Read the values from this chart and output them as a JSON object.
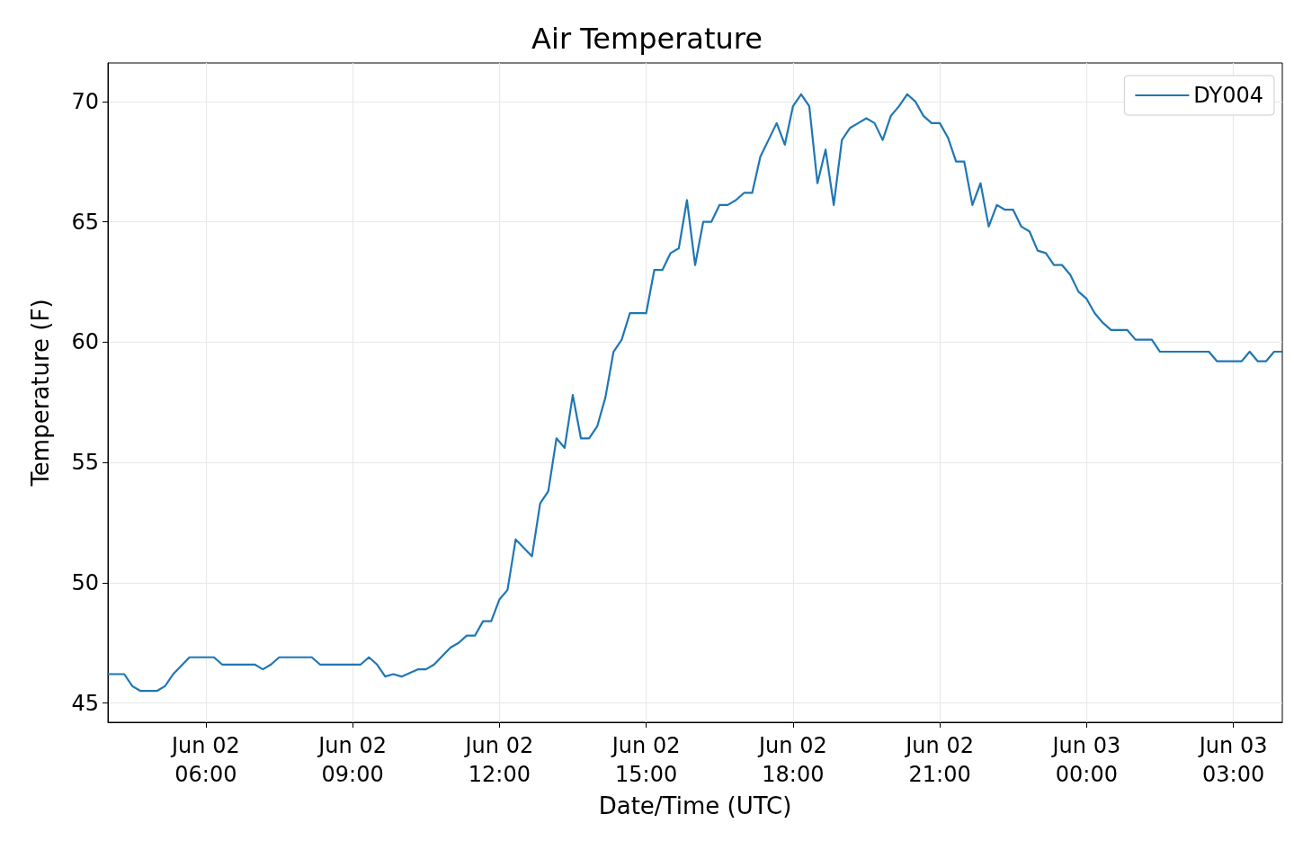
{
  "chart_data": {
    "type": "line",
    "title": "Air Temperature",
    "xlabel": "Date/Time (UTC)",
    "ylabel": "Temperature (F)",
    "x": [
      "--06-02T04:00",
      "--06-02T04:20",
      "--06-02T04:30",
      "--06-02T04:40",
      "--06-02T05:00",
      "--06-02T05:10",
      "--06-02T05:20",
      "--06-02T05:40",
      "--06-02T06:10",
      "--06-02T06:20",
      "--06-02T07:00",
      "--06-02T07:10",
      "--06-02T07:20",
      "--06-02T07:30",
      "--06-02T08:10",
      "--06-02T08:20",
      "--06-02T09:10",
      "--06-02T09:20",
      "--06-02T09:30",
      "--06-02T09:40",
      "--06-02T09:50",
      "--06-02T10:00",
      "--06-02T10:20",
      "--06-02T10:30",
      "--06-02T10:40",
      "--06-02T11:00",
      "--06-02T11:10",
      "--06-02T11:20",
      "--06-02T11:30",
      "--06-02T11:40",
      "--06-02T11:50",
      "--06-02T12:00",
      "--06-02T12:10",
      "--06-02T12:20",
      "--06-02T12:40",
      "--06-02T12:50",
      "--06-02T13:00",
      "--06-02T13:10",
      "--06-02T13:20",
      "--06-02T13:30",
      "--06-02T13:40",
      "--06-02T13:50",
      "--06-02T14:00",
      "--06-02T14:10",
      "--06-02T14:20",
      "--06-02T14:30",
      "--06-02T14:40",
      "--06-02T15:00",
      "--06-02T15:10",
      "--06-02T15:20",
      "--06-02T15:30",
      "--06-02T15:40",
      "--06-02T15:50",
      "--06-02T16:00",
      "--06-02T16:10",
      "--06-02T16:20",
      "--06-02T16:30",
      "--06-02T16:40",
      "--06-02T16:50",
      "--06-02T17:00",
      "--06-02T17:10",
      "--06-02T17:20",
      "--06-02T17:30",
      "--06-02T17:40",
      "--06-02T17:50",
      "--06-02T18:00",
      "--06-02T18:10",
      "--06-02T18:20",
      "--06-02T18:30",
      "--06-02T18:40",
      "--06-02T18:50",
      "--06-02T19:00",
      "--06-02T19:10",
      "--06-02T19:20",
      "--06-02T19:30",
      "--06-02T19:40",
      "--06-02T19:50",
      "--06-02T20:00",
      "--06-02T20:10",
      "--06-02T20:20",
      "--06-02T20:30",
      "--06-02T20:40",
      "--06-02T20:50",
      "--06-02T21:00",
      "--06-02T21:10",
      "--06-02T21:20",
      "--06-02T21:30",
      "--06-02T21:40",
      "--06-02T21:50",
      "--06-02T22:00",
      "--06-02T22:10",
      "--06-02T22:20",
      "--06-02T22:30",
      "--06-02T22:40",
      "--06-02T22:50",
      "--06-02T23:00",
      "--06-02T23:10",
      "--06-02T23:20",
      "--06-02T23:30",
      "--06-02T23:40",
      "--06-02T23:50",
      "--06-03T00:00",
      "--06-03T00:10",
      "--06-03T00:20",
      "--06-03T00:30",
      "--06-03T00:50",
      "--06-03T01:00",
      "--06-03T01:20",
      "--06-03T01:30",
      "--06-03T02:30",
      "--06-03T02:40",
      "--06-03T03:10",
      "--06-03T03:20",
      "--06-03T03:30",
      "--06-03T03:40",
      "--06-03T03:50",
      "--06-03T04:00"
    ],
    "series": [
      {
        "name": "DY004",
        "color": "#1f77b4",
        "values": [
          46.2,
          46.2,
          45.7,
          45.5,
          45.5,
          45.7,
          46.2,
          46.9,
          46.9,
          46.6,
          46.6,
          46.4,
          46.6,
          46.9,
          46.9,
          46.6,
          46.6,
          46.9,
          46.6,
          46.1,
          46.2,
          46.1,
          46.4,
          46.4,
          46.6,
          47.3,
          47.5,
          47.8,
          47.8,
          48.4,
          48.4,
          49.3,
          49.7,
          51.8,
          51.1,
          53.3,
          53.8,
          56.0,
          55.6,
          57.8,
          56.0,
          56.0,
          56.5,
          57.7,
          59.6,
          60.1,
          61.2,
          61.2,
          63.0,
          63.0,
          63.7,
          63.9,
          65.9,
          63.2,
          65.0,
          65.0,
          65.7,
          65.7,
          65.9,
          66.2,
          66.2,
          67.7,
          68.4,
          69.1,
          68.2,
          69.8,
          70.3,
          69.8,
          66.6,
          68.0,
          65.7,
          68.4,
          68.9,
          69.1,
          69.3,
          69.1,
          68.4,
          69.4,
          69.8,
          70.3,
          70.0,
          69.4,
          69.1,
          69.1,
          68.5,
          67.5,
          67.5,
          65.7,
          66.6,
          64.8,
          65.7,
          65.5,
          65.5,
          64.8,
          64.6,
          63.8,
          63.7,
          63.2,
          63.2,
          62.8,
          62.1,
          61.8,
          61.2,
          60.8,
          60.5,
          60.5,
          60.1,
          60.1,
          59.6,
          59.6,
          59.2,
          59.2,
          59.6,
          59.2,
          59.2,
          59.6,
          59.6
        ]
      }
    ],
    "xlim": [
      "--06-02T04:00",
      "--06-03T04:00"
    ],
    "xticks": [
      {
        "value": "--06-02T06:00",
        "label": "Jun 02\n06:00"
      },
      {
        "value": "--06-02T09:00",
        "label": "Jun 02\n09:00"
      },
      {
        "value": "--06-02T12:00",
        "label": "Jun 02\n12:00"
      },
      {
        "value": "--06-02T15:00",
        "label": "Jun 02\n15:00"
      },
      {
        "value": "--06-02T18:00",
        "label": "Jun 02\n18:00"
      },
      {
        "value": "--06-02T21:00",
        "label": "Jun 02\n21:00"
      },
      {
        "value": "--06-03T00:00",
        "label": "Jun 03\n00:00"
      },
      {
        "value": "--06-03T03:00",
        "label": "Jun 03\n03:00"
      }
    ],
    "ylim": [
      44.2,
      71.6
    ],
    "yticks": [
      45,
      50,
      55,
      60,
      65,
      70
    ],
    "grid": true,
    "legend": "top right",
    "marker": "none",
    "line_style": "solid"
  }
}
